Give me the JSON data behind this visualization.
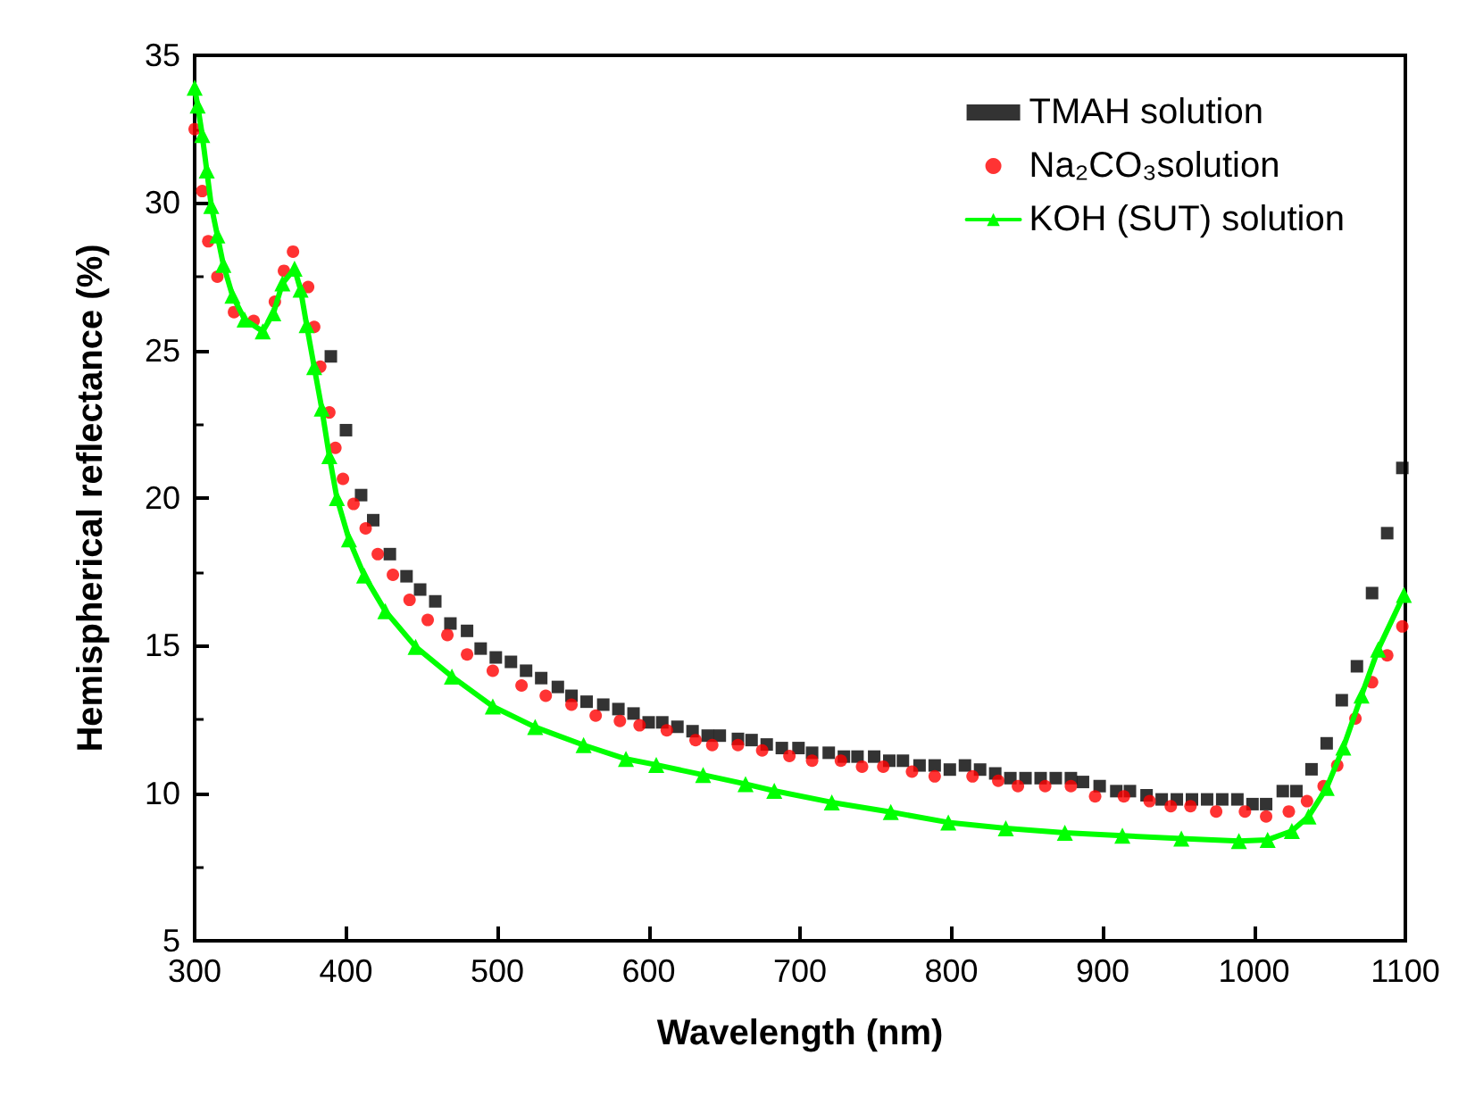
{
  "chart_data": {
    "type": "scatter",
    "xlabel": "Wavelength (nm)",
    "ylabel": "Hemispherical reflectance (%)",
    "xlim": [
      300,
      1100
    ],
    "xticks": [
      300,
      400,
      500,
      600,
      700,
      800,
      900,
      1000,
      1100
    ],
    "ylim": [
      5,
      35
    ],
    "yticks": [
      5,
      10,
      15,
      20,
      25,
      30,
      35
    ],
    "grid": false,
    "legend": "top right",
    "series": [
      {
        "name": "TMAH solution",
        "color": "#000000",
        "marker": "square",
        "x": [
          390,
          400,
          410,
          418,
          429,
          440,
          449,
          459,
          469,
          480,
          489,
          499,
          509,
          519,
          529,
          540,
          549,
          559,
          570,
          580,
          590,
          600,
          609,
          619,
          629,
          639,
          647,
          659,
          668,
          678,
          688,
          699,
          708,
          719,
          729,
          738,
          749,
          759,
          768,
          779,
          789,
          799,
          809,
          819,
          829,
          839,
          849,
          859,
          869,
          879,
          887,
          898,
          909,
          918,
          929,
          939,
          949,
          959,
          969,
          979,
          989,
          999,
          1008,
          1019,
          1028,
          1038,
          1048,
          1058,
          1068,
          1078,
          1088,
          1098
        ],
        "values": [
          24.8,
          22.3,
          20.1,
          19.25,
          18.1,
          17.35,
          16.9,
          16.5,
          15.75,
          15.5,
          14.9,
          14.6,
          14.45,
          14.15,
          13.9,
          13.6,
          13.3,
          13.1,
          13.0,
          12.85,
          12.7,
          12.4,
          12.4,
          12.25,
          12.1,
          11.95,
          11.95,
          11.84,
          11.8,
          11.65,
          11.53,
          11.53,
          11.37,
          11.37,
          11.24,
          11.24,
          11.24,
          11.1,
          11.1,
          10.94,
          10.94,
          10.8,
          10.94,
          10.8,
          10.67,
          10.51,
          10.51,
          10.51,
          10.51,
          10.51,
          10.38,
          10.24,
          10.07,
          10.07,
          9.93,
          9.79,
          9.79,
          9.79,
          9.79,
          9.79,
          9.79,
          9.63,
          9.63,
          10.07,
          10.07,
          10.81,
          11.69,
          13.15,
          14.3,
          16.78,
          18.81,
          21.02
        ]
      },
      {
        "name": "Na₂CO₃solution",
        "color": "#ff0000",
        "marker": "circle",
        "x": [
          300,
          305,
          309,
          315,
          326,
          339,
          353,
          359,
          365,
          375,
          379,
          383,
          389,
          393,
          398,
          405,
          413,
          421,
          431,
          442,
          454,
          467,
          480,
          497,
          516,
          532,
          549,
          565,
          581,
          594,
          612,
          631,
          642,
          659,
          675,
          693,
          708,
          727,
          741,
          755,
          774,
          789,
          814,
          831,
          844,
          862,
          879,
          895,
          914,
          931,
          945,
          958,
          975,
          994,
          1008,
          1023,
          1035,
          1046,
          1055,
          1067,
          1078,
          1088,
          1098
        ],
        "values": [
          32.5,
          30.4,
          28.7,
          27.5,
          26.3,
          26.0,
          26.65,
          27.7,
          28.35,
          27.15,
          25.8,
          24.45,
          22.9,
          21.7,
          20.65,
          19.8,
          18.97,
          18.1,
          17.4,
          16.55,
          15.87,
          15.36,
          14.7,
          14.15,
          13.65,
          13.3,
          13.0,
          12.63,
          12.45,
          12.3,
          12.13,
          11.8,
          11.63,
          11.63,
          11.45,
          11.26,
          11.1,
          11.1,
          10.9,
          10.9,
          10.73,
          10.57,
          10.57,
          10.42,
          10.24,
          10.24,
          10.24,
          9.89,
          9.89,
          9.73,
          9.56,
          9.56,
          9.38,
          9.38,
          9.21,
          9.38,
          9.73,
          10.24,
          10.94,
          12.53,
          13.76,
          14.67,
          15.65
        ]
      },
      {
        "name": "KOH (SUT) solution",
        "color": "#00ff00",
        "type": "line",
        "marker": "triangle",
        "x": [
          300,
          302,
          305,
          308,
          311,
          315,
          319,
          325,
          333,
          345,
          352,
          358,
          366,
          370,
          374,
          379,
          384,
          389,
          394,
          402,
          412,
          426,
          446,
          470,
          497,
          525,
          557,
          585,
          605,
          636,
          664,
          683,
          721,
          760,
          798,
          836,
          875,
          913,
          952,
          990,
          1009,
          1025,
          1036,
          1048,
          1059,
          1071,
          1082,
          1099
        ],
        "values": [
          33.9,
          33.3,
          32.3,
          31.1,
          29.9,
          28.9,
          27.9,
          26.86,
          26.05,
          25.65,
          26.26,
          27.27,
          27.77,
          27.06,
          25.86,
          24.44,
          23.03,
          21.42,
          20.0,
          18.6,
          17.38,
          16.17,
          14.96,
          13.95,
          12.94,
          12.24,
          11.63,
          11.16,
          10.96,
          10.62,
          10.31,
          10.08,
          9.69,
          9.36,
          9.01,
          8.81,
          8.66,
          8.56,
          8.46,
          8.38,
          8.42,
          8.72,
          9.21,
          10.18,
          11.55,
          13.31,
          14.87,
          16.72
        ]
      }
    ]
  }
}
